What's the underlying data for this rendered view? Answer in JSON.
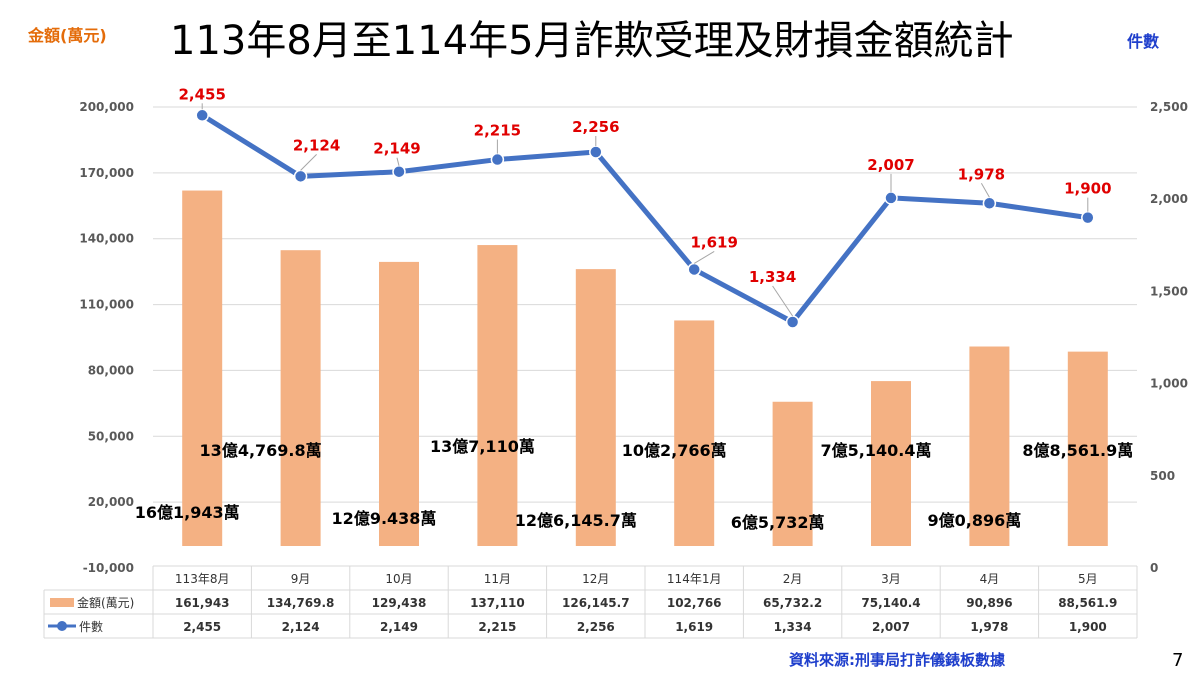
{
  "title": "113年8月至114年5月詐欺受理及財損金額統計",
  "left_unit_label": "金額(萬元)",
  "right_unit_label": "件數",
  "source": "資料來源:刑事局打詐儀錶板數據",
  "page_number": "7",
  "colors": {
    "bar": "#f4b183",
    "line": "#4472c4",
    "point_label": "#e00000",
    "left_unit": "#e46c0a",
    "right_unit": "#1f3fcc"
  },
  "chart_data": {
    "type": "bar+line",
    "categories": [
      "113年8月",
      "9月",
      "10月",
      "11月",
      "12月",
      "114年1月",
      "2月",
      "3月",
      "4月",
      "5月"
    ],
    "series": [
      {
        "name": "金額(萬元)",
        "type": "bar",
        "axis": "left",
        "values": [
          161943,
          134769.8,
          129438,
          137110,
          126145.7,
          102766,
          65732.2,
          75140.4,
          90896,
          88561.9
        ],
        "table_values": [
          "161,943",
          "134,769.8",
          "129,438",
          "137,110",
          "126,145.7",
          "102,766",
          "65,732.2",
          "75,140.4",
          "90,896",
          "88,561.9"
        ],
        "data_labels": [
          "16億1,943萬",
          "13億4,769.8萬",
          "12億9.438萬",
          "13億7,110萬",
          "12億6,145.7萬",
          "10億2,766萬",
          "6億5,732萬",
          "7億5,140.4萬",
          "9億0,896萬",
          "8億8,561.9萬"
        ]
      },
      {
        "name": "件數",
        "type": "line",
        "axis": "right",
        "values": [
          2455,
          2124,
          2149,
          2215,
          2256,
          1619,
          1334,
          2007,
          1978,
          1900
        ],
        "table_values": [
          "2,455",
          "2,124",
          "2,149",
          "2,215",
          "2,256",
          "1,619",
          "1,334",
          "2,007",
          "1,978",
          "1,900"
        ],
        "data_labels": [
          "2,455",
          "2,124",
          "2,149",
          "2,215",
          "2,256",
          "1,619",
          "1,334",
          "2,007",
          "1,978",
          "1,900"
        ]
      }
    ],
    "y_left": {
      "ylim": [
        -10000,
        200000
      ],
      "ticks": [
        "200,000",
        "170,000",
        "140,000",
        "110,000",
        "80,000",
        "50,000",
        "20,000",
        "-10,000"
      ],
      "tick_values": [
        200000,
        170000,
        140000,
        110000,
        80000,
        50000,
        20000,
        -10000
      ]
    },
    "y_right": {
      "ylim": [
        0,
        2500
      ],
      "ticks": [
        "2,500",
        "2,000",
        "1,500",
        "1,000",
        "500",
        "0"
      ],
      "tick_values": [
        2500,
        2000,
        1500,
        1000,
        500,
        0
      ]
    },
    "grid": true,
    "legend": "data-table"
  }
}
